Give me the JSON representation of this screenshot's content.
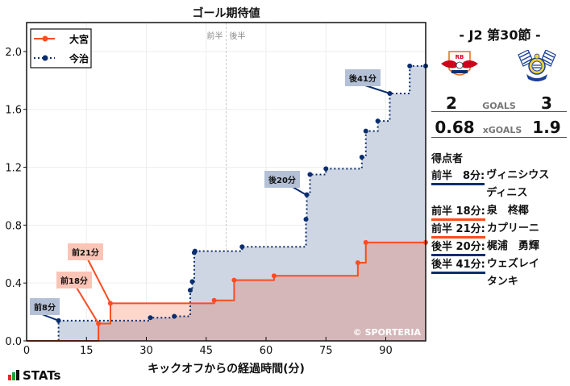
{
  "chart_title": "ゴール期待値",
  "x_axis_label": "キックオフからの経過時間(分)",
  "half_labels": {
    "first": "前半",
    "second": "後半"
  },
  "legend": [
    {
      "label": "大宮",
      "color": "#fc4c1f",
      "style": "solid"
    },
    {
      "label": "今治",
      "color": "#0a2e6e",
      "style": "dotted"
    }
  ],
  "watermark": "© SPORTERIA",
  "brand": "STATs",
  "match": {
    "round": "- J2 第30節 -",
    "home": {
      "name": "大宮",
      "goals": "2",
      "xgoals": "0.68"
    },
    "away": {
      "name": "今治",
      "goals": "3",
      "xgoals": "1.9"
    },
    "goals_label": "GOALS",
    "xgoals_label": "xGOALS"
  },
  "scorers_title": "得点者",
  "scorers": [
    {
      "time": "前半　8分:",
      "name": "ヴィニシウス\nディニス",
      "team": "今治",
      "color": "#0a2e6e"
    },
    {
      "time": "前半 18分:",
      "name": "泉　柊椰",
      "team": "大宮",
      "color": "#fc4c1f"
    },
    {
      "time": "前半 21分:",
      "name": "カプリーニ",
      "team": "大宮",
      "color": "#fc4c1f"
    },
    {
      "time": "後半 20分:",
      "name": "梶浦　勇輝",
      "team": "今治",
      "color": "#0a2e6e"
    },
    {
      "time": "後半 41分:",
      "name": "ウェズレイ\nタンキ",
      "team": "今治",
      "color": "#0a2e6e"
    }
  ],
  "annotations": [
    {
      "label": "前8分",
      "team": "今治"
    },
    {
      "label": "前18分",
      "team": "大宮"
    },
    {
      "label": "前21分",
      "team": "大宮"
    },
    {
      "label": "後20分",
      "team": "今治"
    },
    {
      "label": "後41分",
      "team": "今治"
    }
  ],
  "chart_data": {
    "type": "line",
    "subtype": "step-area",
    "title": "ゴール期待値",
    "xlabel": "キックオフからの経過時間(分)",
    "ylabel": "",
    "xlim": [
      0,
      100
    ],
    "ylim": [
      0,
      2.2
    ],
    "xticks": [
      0,
      15,
      30,
      45,
      60,
      75,
      90
    ],
    "yticks": [
      0.0,
      0.4,
      0.8,
      1.2,
      1.6,
      2.0
    ],
    "grid": true,
    "legend_position": "upper left",
    "halftime_line_x": 50,
    "series": [
      {
        "name": "大宮",
        "color": "#fc4c1f",
        "x": [
          0,
          18,
          21,
          47,
          52,
          62,
          83,
          85,
          100
        ],
        "y": [
          0.0,
          0.12,
          0.26,
          0.28,
          0.42,
          0.45,
          0.54,
          0.68,
          0.68
        ],
        "goals_at": [
          18,
          21
        ]
      },
      {
        "name": "今治",
        "color": "#0a2e6e",
        "x": [
          0,
          8,
          31,
          37,
          41,
          41.5,
          42,
          42.2,
          54,
          70,
          70.2,
          71,
          75,
          84,
          85,
          88,
          91,
          96,
          100
        ],
        "y": [
          0.0,
          0.14,
          0.16,
          0.17,
          0.35,
          0.41,
          0.61,
          0.62,
          0.65,
          0.84,
          1.01,
          1.15,
          1.19,
          1.27,
          1.45,
          1.52,
          1.71,
          1.9,
          1.9
        ],
        "goals_at": [
          8,
          70,
          91
        ]
      }
    ]
  }
}
